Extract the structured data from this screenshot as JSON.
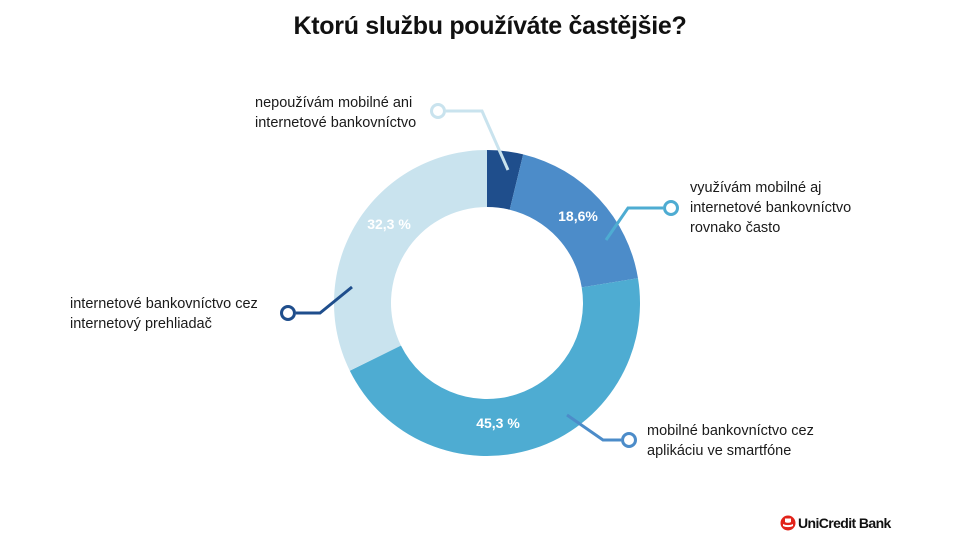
{
  "chart_data": {
    "type": "pie",
    "variant": "donut",
    "title": "Ktorú službu používáte častějšie?",
    "slices": [
      {
        "label": "nepoužívám mobilné ani internetové bankovníctvo",
        "value": 3.8,
        "display": "",
        "color": "#1f4e8c"
      },
      {
        "label": "využívám mobilné aj internetové bankovníctvo rovnako často",
        "value": 18.6,
        "display": "18,6%",
        "color": "#4c8cc9"
      },
      {
        "label": "mobilné bankovníctvo cez aplikáciu ve smartfóne",
        "value": 45.3,
        "display": "45,3 %",
        "color": "#4eacd2"
      },
      {
        "label": "internetové bankovníctvo cez internetový prehliadač",
        "value": 32.3,
        "display": "32,3 %",
        "color": "#c9e3ee"
      }
    ],
    "legend_lines": [
      [
        "nepoužívám mobilné ani",
        "internetové bankovníctvo"
      ],
      [
        "využívám mobilné aj",
        "internetové bankovníctvo",
        "rovnako často"
      ],
      [
        "mobilné bankovníctvo cez",
        "aplikáciu ve smartfóne"
      ],
      [
        "internetové bankovníctvo cez",
        "internetový prehliadač"
      ]
    ]
  },
  "brand": {
    "name": "UniCredit Bank",
    "logo_color": "#e2231a"
  }
}
